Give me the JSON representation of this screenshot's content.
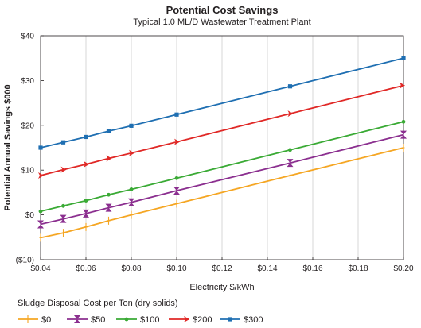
{
  "chart_data": {
    "type": "line",
    "title": "Potential Cost Savings",
    "subtitle": "Typical 1.0 ML/D Wastewater Treatment Plant",
    "xlabel": "Electricity $/kWh",
    "ylabel": "Potential Annual Savings $000",
    "xlim": [
      0.04,
      0.2
    ],
    "ylim": [
      -10,
      40
    ],
    "x_ticks": [
      "$0.04",
      "$0.06",
      "$0.08",
      "$0.10",
      "$0.12",
      "$0.14",
      "$0.16",
      "$0.18",
      "$0.20"
    ],
    "x_tick_values": [
      0.04,
      0.06,
      0.08,
      0.1,
      0.12,
      0.14,
      0.16,
      0.18,
      0.2
    ],
    "y_ticks": [
      "$40",
      "$30",
      "$20",
      "$10",
      "$0",
      "($10)"
    ],
    "y_tick_values": [
      40,
      30,
      20,
      10,
      0,
      -10
    ],
    "grid": "vertical",
    "legend_title": "Sludge Disposal Cost per Ton (dry solids)",
    "legend_position": "bottom",
    "x": [
      0.04,
      0.05,
      0.06,
      0.07,
      0.08,
      0.1,
      0.15,
      0.2
    ],
    "series": [
      {
        "name": "$0",
        "color": "#f5a623",
        "marker": "plus",
        "values": [
          -5.1,
          -4.0,
          -2.7,
          -1.3,
          0.0,
          2.5,
          8.8,
          15.0
        ]
      },
      {
        "name": "$50",
        "color": "#8b2f8f",
        "marker": "hourglass",
        "values": [
          -2.1,
          -0.9,
          0.3,
          1.6,
          2.8,
          5.4,
          11.6,
          17.9
        ]
      },
      {
        "name": "$100",
        "color": "#3aaa35",
        "marker": "circle",
        "values": [
          0.8,
          2.0,
          3.2,
          4.5,
          5.7,
          8.2,
          14.5,
          20.8
        ]
      },
      {
        "name": "$200",
        "color": "#e02826",
        "marker": "arrow",
        "values": [
          8.8,
          10.1,
          11.3,
          12.6,
          13.8,
          16.3,
          22.6,
          28.9
        ]
      },
      {
        "name": "$300",
        "color": "#1f6fb2",
        "marker": "square",
        "values": [
          15.0,
          16.2,
          17.4,
          18.7,
          19.9,
          22.4,
          28.7,
          35.0
        ]
      }
    ]
  }
}
